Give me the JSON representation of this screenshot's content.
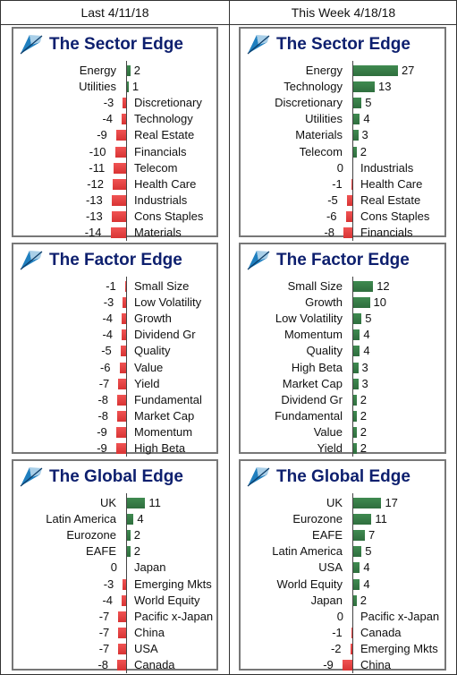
{
  "headers": {
    "left": "Last 4/11/18",
    "right": "This Week 4/18/18"
  },
  "colors": {
    "positive": "#3a7d4a",
    "negative": "#e84444",
    "title": "#0d1f6e",
    "logo": "#1f7fbf"
  },
  "chart_data": [
    {
      "type": "bar",
      "title": "The Sector Edge",
      "column": "Last 4/11/18",
      "categories": [
        "Energy",
        "Utilities",
        "Discretionary",
        "Technology",
        "Real Estate",
        "Financials",
        "Telecom",
        "Health Care",
        "Industrials",
        "Cons Staples",
        "Materials"
      ],
      "values": [
        2,
        1,
        -3,
        -4,
        -9,
        -10,
        -11,
        -12,
        -13,
        -13,
        -14
      ]
    },
    {
      "type": "bar",
      "title": "The Sector Edge",
      "column": "This Week 4/18/18",
      "categories": [
        "Energy",
        "Technology",
        "Discretionary",
        "Utilities",
        "Materials",
        "Telecom",
        "Industrials",
        "Health Care",
        "Real Estate",
        "Cons Staples",
        "Financials"
      ],
      "values": [
        27,
        13,
        5,
        4,
        3,
        2,
        0,
        -1,
        -5,
        -6,
        -8
      ]
    },
    {
      "type": "bar",
      "title": "The Factor Edge",
      "column": "Last 4/11/18",
      "categories": [
        "Small Size",
        "Low Volatility",
        "Growth",
        "Dividend Gr",
        "Quality",
        "Value",
        "Yield",
        "Fundamental",
        "Market Cap",
        "Momentum",
        "High Beta"
      ],
      "values": [
        -1,
        -3,
        -4,
        -4,
        -5,
        -6,
        -7,
        -8,
        -8,
        -9,
        -9
      ]
    },
    {
      "type": "bar",
      "title": "The Factor Edge",
      "column": "This Week 4/18/18",
      "categories": [
        "Small Size",
        "Growth",
        "Low Volatility",
        "Momentum",
        "Quality",
        "High Beta",
        "Market Cap",
        "Dividend Gr",
        "Fundamental",
        "Value",
        "Yield"
      ],
      "values": [
        12,
        10,
        5,
        4,
        4,
        3,
        3,
        2,
        2,
        2,
        2
      ]
    },
    {
      "type": "bar",
      "title": "The Global Edge",
      "column": "Last 4/11/18",
      "categories": [
        "UK",
        "Latin America",
        "Eurozone",
        "EAFE",
        "Japan",
        "Emerging Mkts",
        "World Equity",
        "Pacific x-Japan",
        "China",
        "USA",
        "Canada"
      ],
      "values": [
        11,
        4,
        2,
        2,
        0,
        -3,
        -4,
        -7,
        -7,
        -7,
        -8
      ]
    },
    {
      "type": "bar",
      "title": "The Global Edge",
      "column": "This Week 4/18/18",
      "categories": [
        "UK",
        "Eurozone",
        "EAFE",
        "Latin America",
        "USA",
        "World Equity",
        "Japan",
        "Pacific x-Japan",
        "Canada",
        "Emerging Mkts",
        "China"
      ],
      "values": [
        17,
        11,
        7,
        5,
        4,
        4,
        2,
        0,
        -1,
        -2,
        -9
      ]
    }
  ]
}
